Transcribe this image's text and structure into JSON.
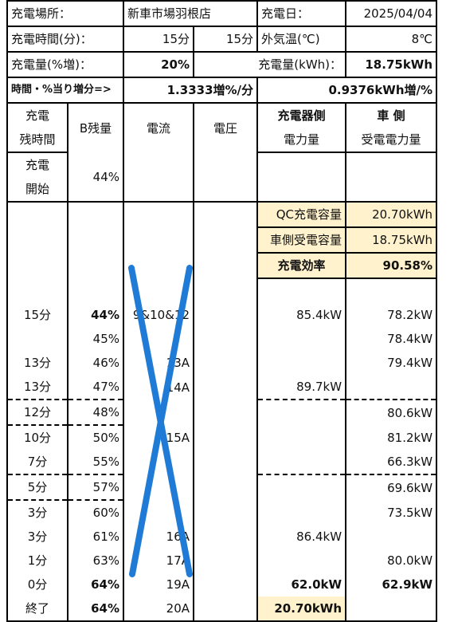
{
  "top": {
    "place_label": "充電場所：",
    "place_value": "新車市場羽根店",
    "date_label": "充電日：",
    "date_value": "2025/04/04",
    "time_label": "充電時間(分)：",
    "time_value1": "15分",
    "time_value2": "15分",
    "temp_label": "外気温(℃)",
    "temp_value": "8℃",
    "pct_label": "充電量(%増)：",
    "pct_value": "20%",
    "kwh_label": "充電量(kWh)：",
    "kwh_value": "18.75kWh",
    "rate_label": "時間・%当り増分=>",
    "rate_pct": "1.3333増%/分",
    "rate_kwh": "0.9376kWh増/%"
  },
  "headers": {
    "remaining_1": "充電",
    "remaining_2": "残時間",
    "battery": "B残量",
    "current": "電流",
    "voltage": "電圧",
    "charger_1": "充電器側",
    "charger_2": "電力量",
    "car_1": "車 側",
    "car_2": "受電電力量"
  },
  "start": {
    "label_1": "充電",
    "label_2": "開始",
    "battery": "44%"
  },
  "summary": {
    "qc_label": "QC充電容量",
    "qc_value": "20.70kWh",
    "car_label": "車側受電容量",
    "car_value": "18.75kWh",
    "eff_label": "充電効率",
    "eff_value": "90.58%"
  },
  "rows": [
    {
      "time": "15分",
      "battery": "44%",
      "current": "9&10&12",
      "charger": "85.4kW",
      "car": "78.2kW"
    },
    {
      "time": "",
      "battery": "45%",
      "current": "",
      "charger": "",
      "car": "78.4kW"
    },
    {
      "time": "13分",
      "battery": "46%",
      "current": "13A",
      "charger": "",
      "car": "79.4kW"
    },
    {
      "time": "13分",
      "battery": "47%",
      "current": "14A",
      "charger": "89.7kW",
      "car": ""
    },
    {
      "time": "12分",
      "battery": "48%",
      "current": "",
      "charger": "",
      "car": "80.6kW"
    },
    {
      "time": "10分",
      "battery": "50%",
      "current": "15A",
      "charger": "",
      "car": "81.2kW"
    },
    {
      "time": "7分",
      "battery": "55%",
      "current": "",
      "charger": "",
      "car": "66.3kW"
    },
    {
      "time": "5分",
      "battery": "57%",
      "current": "",
      "charger": "",
      "car": "69.6kW"
    },
    {
      "time": "3分",
      "battery": "60%",
      "current": "",
      "charger": "",
      "car": "73.5kW"
    },
    {
      "time": "3分",
      "battery": "61%",
      "current": "16A",
      "charger": "86.4kW",
      "car": ""
    },
    {
      "time": "1分",
      "battery": "63%",
      "current": "17A",
      "charger": "",
      "car": "80.0kW"
    },
    {
      "time": "0分",
      "battery": "64%",
      "current": "19A",
      "charger": "62.0kW",
      "car": "62.9kW"
    },
    {
      "time": "終了",
      "battery": "64%",
      "current": "20A",
      "charger": "20.70kWh",
      "car": ""
    }
  ],
  "colors": {
    "cross": "#1f7bd6",
    "highlight": "#fff2cc"
  }
}
